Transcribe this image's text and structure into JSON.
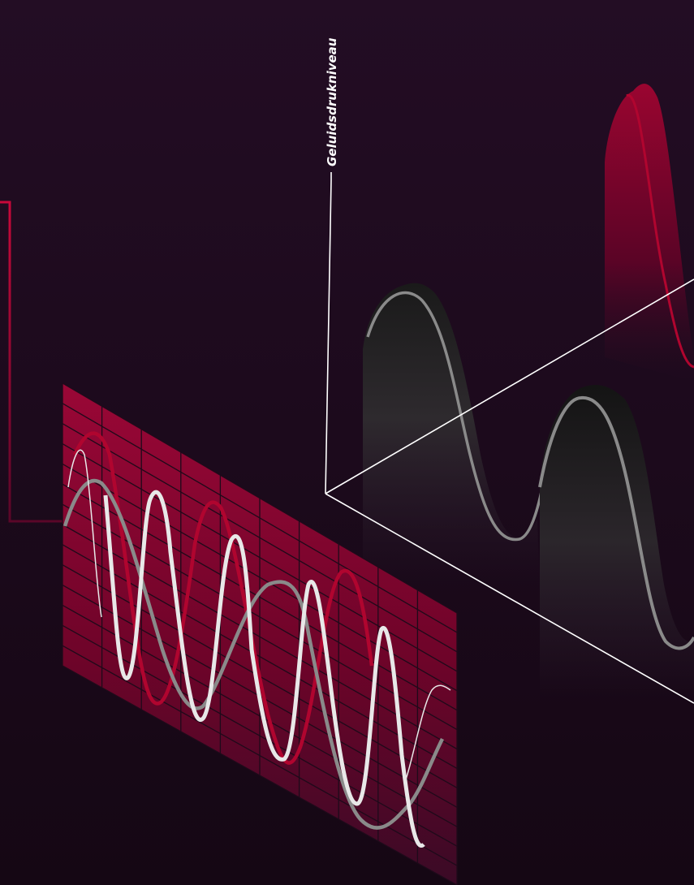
{
  "diagram": {
    "axis_label": "Geluidsdrukniveau",
    "colors": {
      "background": "#1b0a1c",
      "accent_red": "#b0052f",
      "panel_red": "#8a0630",
      "wave_white": "#e8e8e8",
      "wave_gray": "#8a8a8a",
      "axis_line": "#ffffff"
    }
  }
}
